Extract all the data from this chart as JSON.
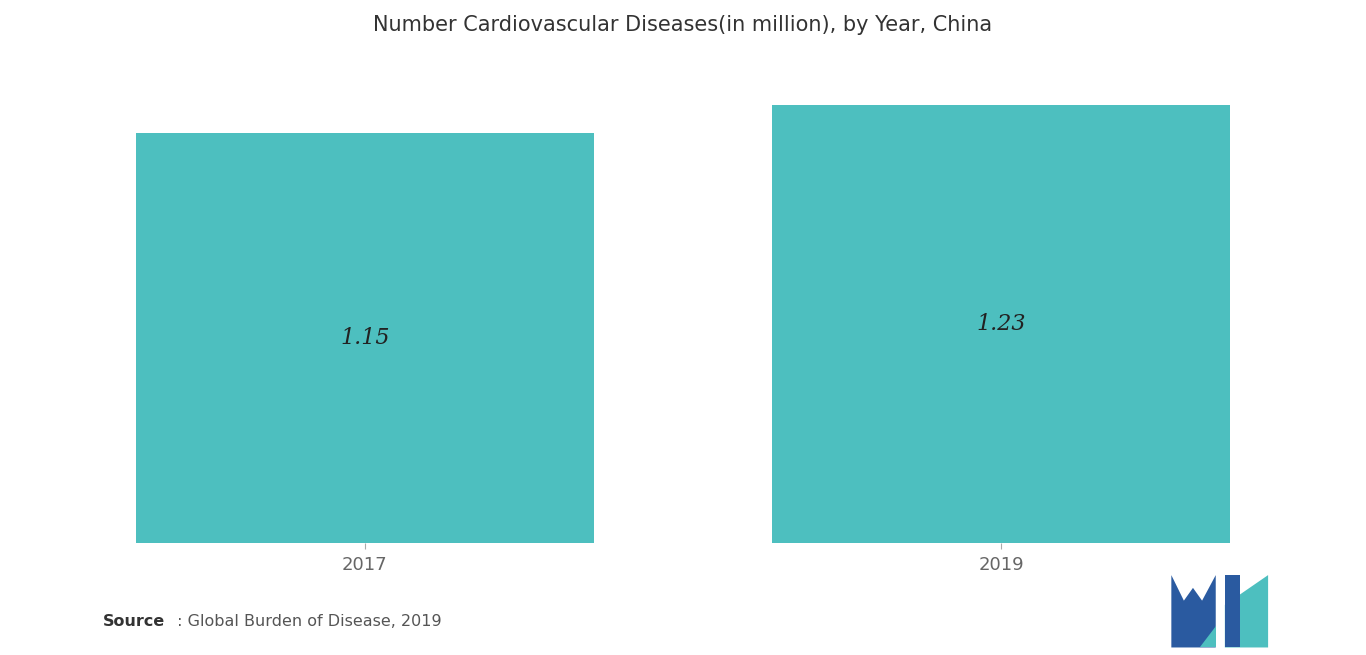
{
  "title": "Number Cardiovascular Diseases(in million), by Year, China",
  "categories": [
    "2017",
    "2019"
  ],
  "values": [
    1.15,
    1.23
  ],
  "bar_color": "#4DBFBF",
  "bar_labels": [
    "1.15",
    "1.23"
  ],
  "label_fontsize": 16,
  "title_fontsize": 15,
  "source_bold": "Source",
  "source_rest": " : Global Burden of Disease, 2019",
  "background_color": "#ffffff",
  "bar_width": 0.72,
  "ylim": [
    0,
    1.36
  ],
  "xlabel_fontsize": 13,
  "tick_color": "#666666",
  "title_color": "#333333"
}
